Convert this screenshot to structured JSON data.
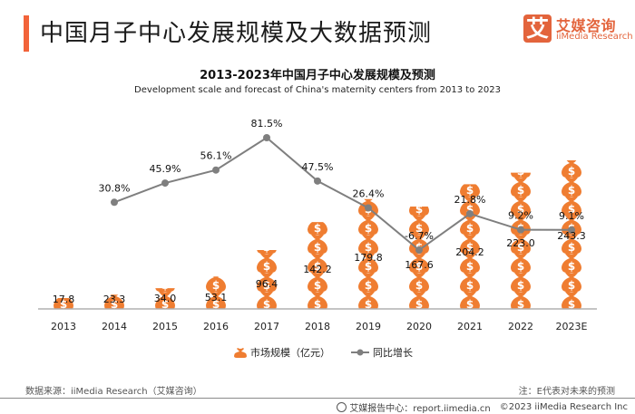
{
  "header": {
    "title": "中国月子中心发展规模及大数据预测",
    "logo": {
      "mark": "艾",
      "name_cn": "艾媒咨询",
      "name_en": "iiMedia Research"
    }
  },
  "colors": {
    "accent": "#f2633a",
    "bag": "#ef7d31",
    "line": "#7f7f7f",
    "axis": "#b0b0b0"
  },
  "chart_data": {
    "type": "bar",
    "title": "2013-2023年中国月子中心发展规模及预测",
    "subtitle": "Development scale and forecast of China's maternity centers from 2013 to 2023",
    "categories": [
      "2013",
      "2014",
      "2015",
      "2016",
      "2017",
      "2018",
      "2019",
      "2020",
      "2021",
      "2022",
      "2023E"
    ],
    "series": [
      {
        "name": "市场规模（亿元）",
        "type": "pictograph-bar",
        "icon": "money-bag-icon",
        "values": [
          17.8,
          23.3,
          34.0,
          53.1,
          96.4,
          142.2,
          179.8,
          167.6,
          204.2,
          223.0,
          243.3
        ],
        "labels": [
          "17.8",
          "23.3",
          "34.0",
          "53.1",
          "96.4",
          "142.2",
          "179.8",
          "167.6",
          "204.2",
          "223.0",
          "243.3"
        ]
      },
      {
        "name": "同比增长",
        "type": "line",
        "values": [
          null,
          30.8,
          45.9,
          56.1,
          81.5,
          47.5,
          26.4,
          -6.7,
          21.8,
          9.2,
          9.1
        ],
        "labels": [
          null,
          "30.8%",
          "45.9%",
          "56.1%",
          "81.5%",
          "47.5%",
          "26.4%",
          "-6.7%",
          "21.8%",
          "9.2%",
          "9.1%"
        ]
      }
    ],
    "xlabel": "",
    "ylabel": "",
    "grid": false,
    "legend": "bottom-center"
  },
  "legend": {
    "bar_label": "市场规模（亿元）",
    "line_label": "同比增长"
  },
  "footer": {
    "source": "数据来源：iiMedia Research（艾媒咨询）",
    "note": "注：E代表对未来的预测",
    "report_center": "艾媒报告中心：report.iimedia.cn",
    "copyright": "©2023  iiMedia Research  Inc"
  }
}
